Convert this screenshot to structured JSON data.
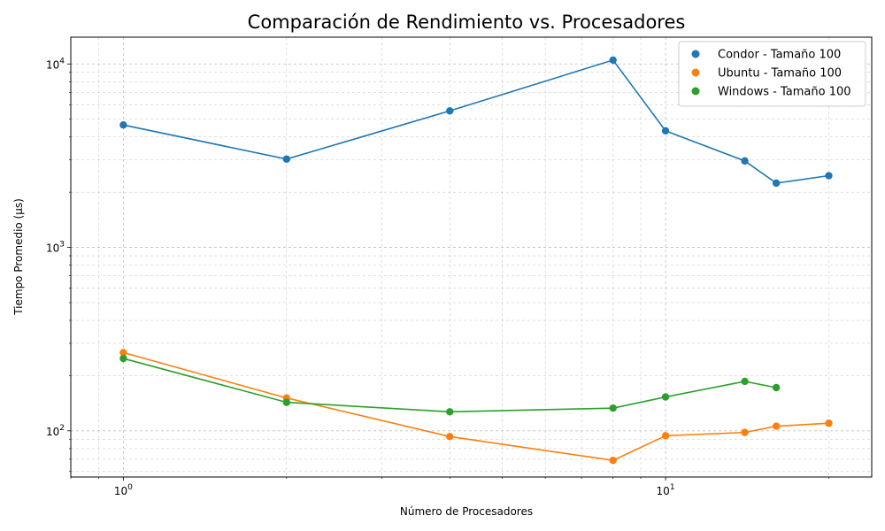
{
  "chart_data": {
    "type": "line",
    "title": "Comparación de Rendimiento vs. Procesadores",
    "xlabel": "Número de Procesadores",
    "ylabel": "Tiempo Promedio (µs)",
    "xscale": "log",
    "yscale": "log",
    "xlim": [
      0.8,
      24
    ],
    "ylim": [
      56,
      14000
    ],
    "x_ticks": [
      {
        "value": 1,
        "base": "10",
        "exp": "0"
      },
      {
        "value": 10,
        "base": "10",
        "exp": "1"
      }
    ],
    "y_ticks": [
      {
        "value": 100,
        "base": "10",
        "exp": "2"
      },
      {
        "value": 1000,
        "base": "10",
        "exp": "3"
      },
      {
        "value": 10000,
        "base": "10",
        "exp": "4"
      }
    ],
    "grid": true,
    "legend_position": "top-right",
    "series": [
      {
        "name": "Condor - Tamaño 100",
        "color": "#1f77b4",
        "x": [
          1,
          2,
          4,
          8,
          10,
          14,
          16,
          20
        ],
        "y": [
          4650,
          3030,
          5550,
          10500,
          4320,
          2960,
          2240,
          2460
        ]
      },
      {
        "name": "Ubuntu - Tamaño 100",
        "color": "#ff7f0e",
        "x": [
          1,
          2,
          4,
          8,
          10,
          14,
          16,
          20
        ],
        "y": [
          267,
          151,
          93,
          69,
          94,
          98,
          106,
          110
        ]
      },
      {
        "name": "Windows - Tamaño 100",
        "color": "#2ca02c",
        "x": [
          1,
          2,
          4,
          8,
          10,
          14,
          16
        ],
        "y": [
          248,
          143,
          127,
          133,
          153,
          186,
          172
        ]
      }
    ]
  }
}
